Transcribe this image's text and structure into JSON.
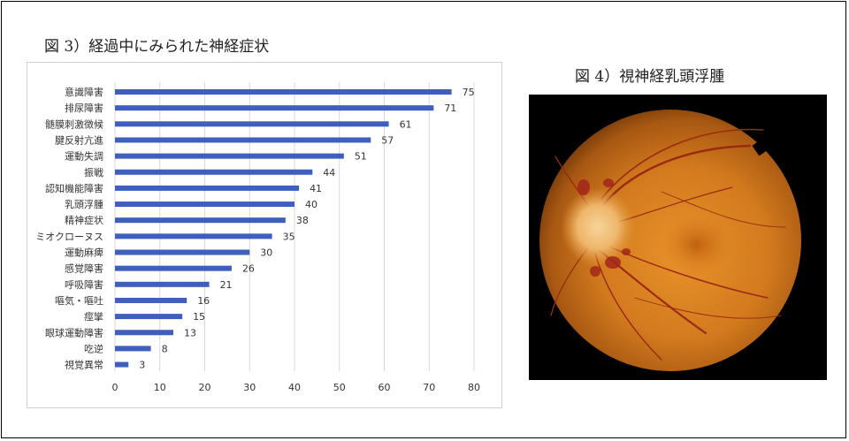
{
  "figure3": {
    "caption": "図 3）経過中にみられた神経症状"
  },
  "figure4": {
    "caption": "図 4）視神経乳頭浮腫"
  },
  "colors": {
    "bar": "#3f5fbf",
    "grid": "#d9d9d9"
  },
  "chart_data": {
    "type": "bar",
    "orientation": "horizontal",
    "categories": [
      "意識障害",
      "排尿障害",
      "髄膜刺激徴候",
      "腱反射亢進",
      "運動失調",
      "振戦",
      "認知機能障害",
      "乳頭浮腫",
      "精神症状",
      "ミオクローヌス",
      "運動麻痺",
      "感覚障害",
      "呼吸障害",
      "嘔気・嘔吐",
      "痙攣",
      "眼球運動障害",
      "吃逆",
      "視覚異常"
    ],
    "values": [
      75,
      71,
      61,
      57,
      51,
      44,
      41,
      40,
      38,
      35,
      30,
      26,
      21,
      16,
      15,
      13,
      8,
      3
    ],
    "xlim": [
      0,
      80
    ],
    "xticks": [
      0,
      10,
      20,
      30,
      40,
      50,
      60,
      70,
      80
    ],
    "grid": true,
    "data_labels": true
  }
}
